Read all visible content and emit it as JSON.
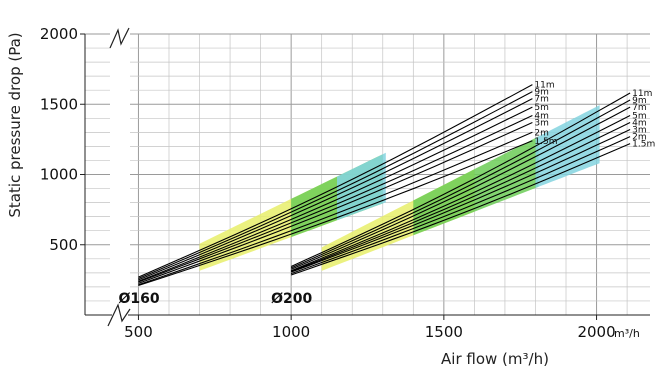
{
  "chart_data": {
    "type": "line",
    "title": "",
    "xlabel": "Air flow (m³/h)",
    "ylabel": "Static pressure drop (Pa)",
    "x_unit_label": "m³/h",
    "x_ticks": [
      500,
      1000,
      1500,
      2000
    ],
    "y_ticks": [
      500,
      1000,
      1500,
      2000
    ],
    "xlim": [
      325,
      2175
    ],
    "ylim": [
      0,
      2000
    ],
    "grid": true,
    "groups": [
      {
        "label": "Ø160",
        "x_range": [
          500,
          1790
        ],
        "bands": [
          {
            "name": "yellow",
            "color": "#e8ef6a",
            "x_range": [
              700,
              1150
            ]
          },
          {
            "name": "green",
            "color": "#6ccd57",
            "x_range": [
              1000,
              1300
            ]
          },
          {
            "name": "blue",
            "color": "#84d3df",
            "x_range": [
              1150,
              1310
            ]
          }
        ],
        "series": [
          {
            "name": "11m",
            "values": [
              270,
              1640
            ]
          },
          {
            "name": "9m",
            "values": [
              260,
              1590
            ]
          },
          {
            "name": "7m",
            "values": [
              250,
              1540
            ]
          },
          {
            "name": "5m",
            "values": [
              240,
              1480
            ]
          },
          {
            "name": "4m",
            "values": [
              235,
              1420
            ]
          },
          {
            "name": "3m",
            "values": [
              225,
              1370
            ]
          },
          {
            "name": "2m",
            "values": [
              215,
              1300
            ]
          },
          {
            "name": "1.5m",
            "values": [
              210,
              1240
            ]
          }
        ]
      },
      {
        "label": "Ø200",
        "x_range": [
          1000,
          2110
        ],
        "bands": [
          {
            "name": "yellow",
            "color": "#e8ef6a",
            "x_range": [
              1100,
              1600
            ]
          },
          {
            "name": "green",
            "color": "#6ccd57",
            "x_range": [
              1400,
              1810
            ]
          },
          {
            "name": "blue",
            "color": "#84d3df",
            "x_range": [
              1800,
              2010
            ]
          }
        ],
        "series": [
          {
            "name": "11m",
            "values": [
              345,
              1580
            ]
          },
          {
            "name": "9m",
            "values": [
              335,
              1530
            ]
          },
          {
            "name": "7m",
            "values": [
              325,
              1480
            ]
          },
          {
            "name": "5m",
            "values": [
              315,
              1420
            ]
          },
          {
            "name": "4m",
            "values": [
              310,
              1370
            ]
          },
          {
            "name": "3m",
            "values": [
              305,
              1320
            ]
          },
          {
            "name": "2m",
            "values": [
              295,
              1270
            ]
          },
          {
            "name": "1.5m",
            "values": [
              285,
              1220
            ]
          }
        ]
      }
    ]
  }
}
